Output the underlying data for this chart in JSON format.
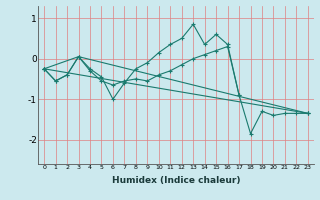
{
  "xlabel": "Humidex (Indice chaleur)",
  "bg_color": "#cce9ee",
  "line_color": "#1a7a6e",
  "grid_color": "#e08080",
  "xlim": [
    -0.5,
    23.5
  ],
  "ylim": [
    -2.6,
    1.3
  ],
  "yticks": [
    -2,
    -1,
    0,
    1
  ],
  "xticks": [
    0,
    1,
    2,
    3,
    4,
    5,
    6,
    7,
    8,
    9,
    10,
    11,
    12,
    13,
    14,
    15,
    16,
    17,
    18,
    19,
    20,
    21,
    22,
    23
  ],
  "series": [
    {
      "x": [
        0,
        1,
        2,
        3,
        4,
        5,
        6,
        7,
        8,
        9,
        10,
        11,
        12,
        13,
        14,
        15,
        16,
        17,
        18,
        19,
        20,
        21,
        22,
        23
      ],
      "y": [
        -0.25,
        -0.55,
        -0.4,
        0.05,
        -0.25,
        -0.45,
        -1.0,
        -0.6,
        -0.25,
        -0.1,
        0.15,
        0.35,
        0.5,
        0.85,
        0.35,
        0.6,
        0.35,
        -0.9,
        -1.85,
        -1.3,
        -1.4,
        -1.35,
        -1.35,
        -1.35
      ]
    },
    {
      "x": [
        0,
        1,
        2,
        3,
        4,
        5,
        6,
        7,
        8,
        9,
        10,
        11,
        12,
        13,
        14,
        15,
        16,
        17
      ],
      "y": [
        -0.25,
        -0.55,
        -0.4,
        0.05,
        -0.3,
        -0.55,
        -0.65,
        -0.55,
        -0.5,
        -0.55,
        -0.4,
        -0.3,
        -0.15,
        0.0,
        0.1,
        0.2,
        0.3,
        -0.9
      ]
    },
    {
      "x": [
        0,
        23
      ],
      "y": [
        -0.25,
        -1.35
      ]
    },
    {
      "x": [
        0,
        3,
        23
      ],
      "y": [
        -0.25,
        0.05,
        -1.35
      ]
    }
  ]
}
